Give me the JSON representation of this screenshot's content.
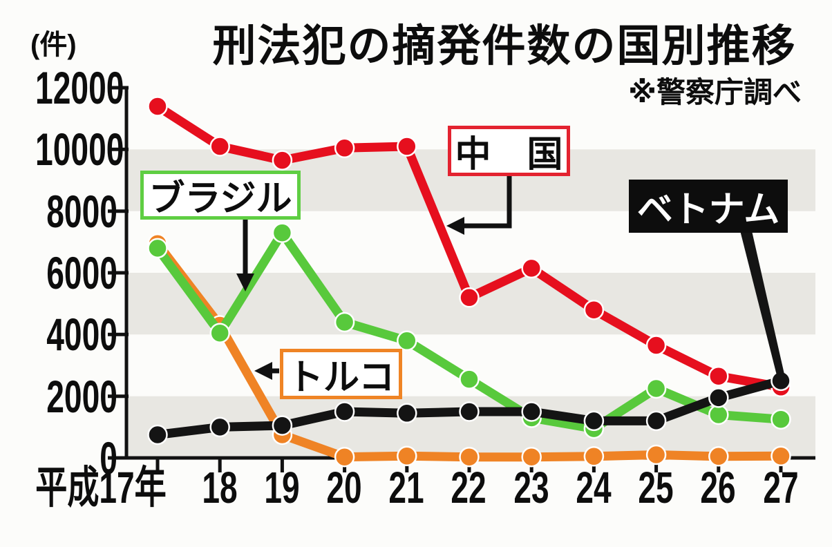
{
  "title": "刑法犯の摘発件数の国別推移",
  "source_note": "※警察庁調べ",
  "y_axis_unit": "(件)",
  "chart_data": {
    "type": "line",
    "categories": [
      "平成17年",
      "18",
      "19",
      "20",
      "21",
      "22",
      "23",
      "24",
      "25",
      "26",
      "27"
    ],
    "yticks_top_down": [
      "12000",
      "10000",
      "8000",
      "6000",
      "4000",
      "2000",
      "0"
    ],
    "ylim": [
      0,
      12000
    ],
    "grid": "alternating horizontal gray bands every 2000",
    "legend_position": "annotated callout boxes with arrows pointing at lines",
    "series": [
      {
        "id": "turkey",
        "name": "トルコ",
        "label": "トルコ",
        "color": "#ef8325",
        "values": [
          6950,
          4300,
          750,
          30,
          60,
          30,
          30,
          50,
          100,
          50,
          60
        ]
      },
      {
        "id": "china",
        "name": "中国",
        "label": "中　国",
        "color": "#e60f1e",
        "values": [
          11400,
          10100,
          9650,
          10050,
          10100,
          5200,
          6150,
          4800,
          3650,
          2650,
          2300
        ]
      },
      {
        "id": "brazil",
        "name": "ブラジル",
        "label": "ブラジル",
        "color": "#58c93c",
        "values": [
          6800,
          4050,
          7300,
          4400,
          3800,
          2550,
          1300,
          950,
          2250,
          1400,
          1250
        ]
      },
      {
        "id": "vietnam",
        "name": "ベトナム",
        "label": "ベトナム",
        "color": "#141414",
        "values": [
          750,
          1000,
          1050,
          1500,
          1450,
          1500,
          1500,
          1200,
          1200,
          1950,
          2500
        ]
      }
    ],
    "band_color": "#e8e7e2",
    "axis_color": "#111111"
  }
}
